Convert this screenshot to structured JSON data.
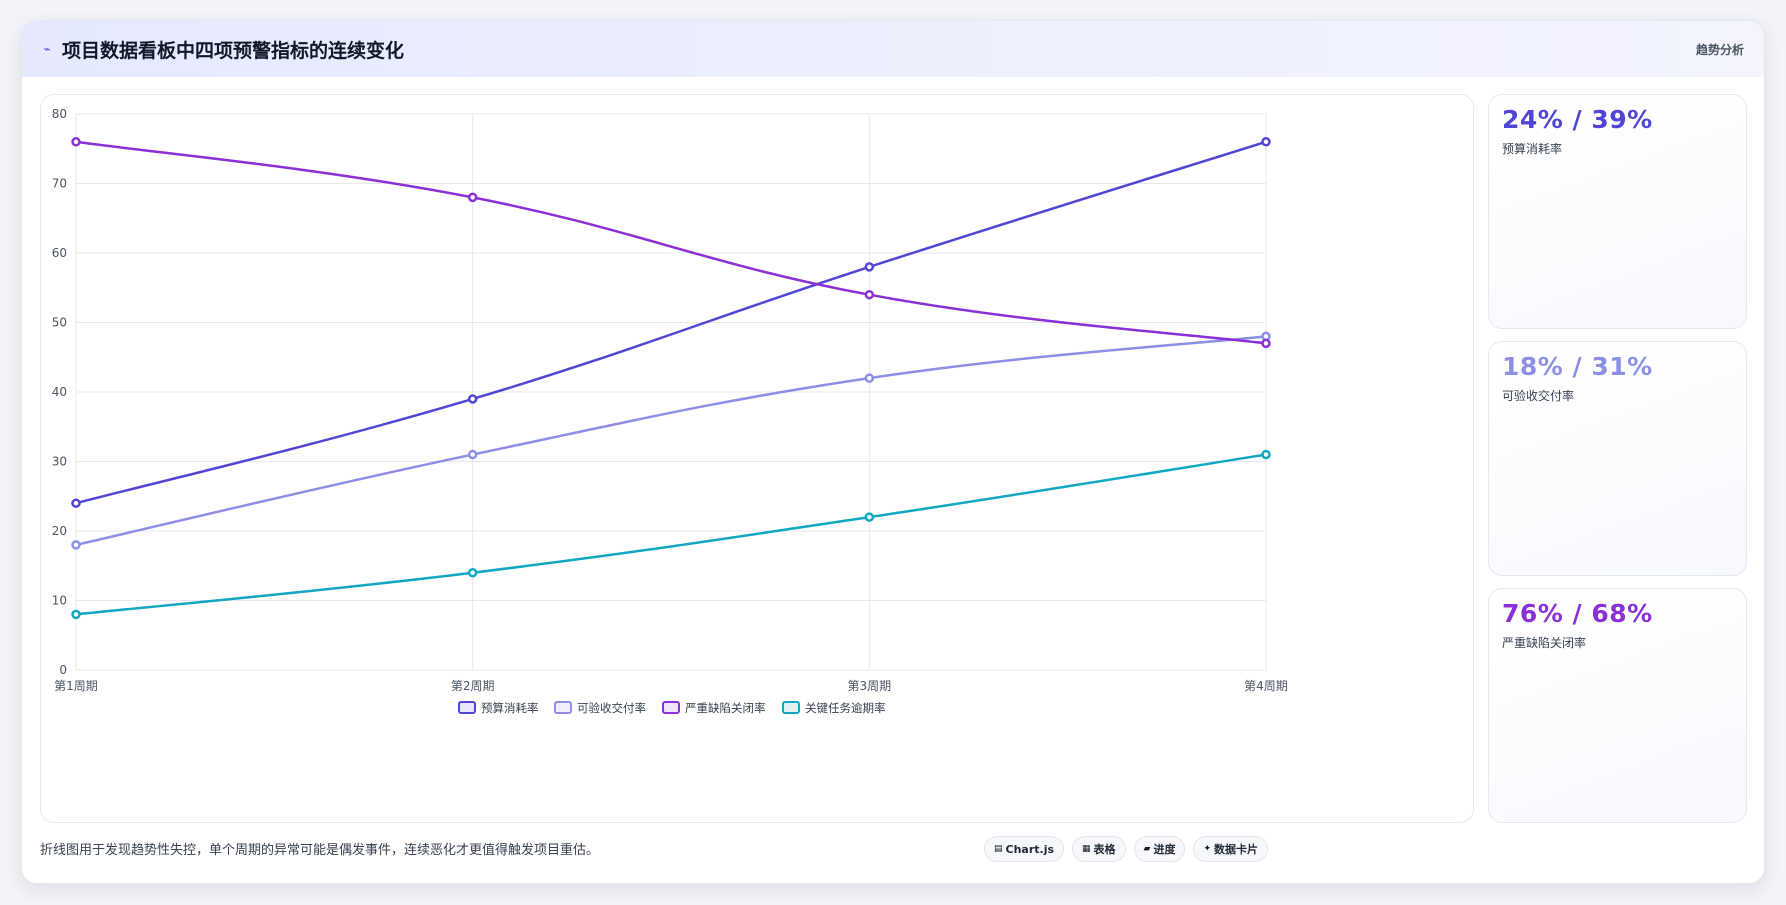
{
  "header": {
    "title_icon": "trend-icon",
    "title": "项目数据看板中四项预警指标的连续变化",
    "tag": "趋势分析"
  },
  "chart_data": {
    "type": "line",
    "x": [
      "第1周期",
      "第2周期",
      "第3周期",
      "第4周期"
    ],
    "ylim": [
      0,
      80
    ],
    "yticks": [
      0,
      10,
      20,
      30,
      40,
      50,
      60,
      70,
      80
    ],
    "grid": true,
    "legend_position": "bottom",
    "series": [
      {
        "name": "预算消耗率",
        "color": "#4f46d5",
        "values": [
          24,
          39,
          58,
          76
        ]
      },
      {
        "name": "可验收交付率",
        "color": "#8b90e6",
        "values": [
          18,
          31,
          42,
          48
        ]
      },
      {
        "name": "严重缺陷关闭率",
        "color": "#8b2fd6",
        "values": [
          76,
          68,
          54,
          47
        ]
      },
      {
        "name": "关键任务逾期率",
        "color": "#10a8c0",
        "values": [
          8,
          14,
          22,
          31
        ]
      }
    ]
  },
  "stats": [
    {
      "value": "24% / 39%",
      "label": "预算消耗率",
      "color": "#4f46d5"
    },
    {
      "value": "18% / 31%",
      "label": "可验收交付率",
      "color": "#8b90e6"
    },
    {
      "value": "76% / 68%",
      "label": "严重缺陷关闭率",
      "color": "#8b2fd6"
    }
  ],
  "footer": {
    "note": "折线图用于发现趋势性失控，单个周期的异常可能是偶发事件，连续恶化才更值得触发项目重估。",
    "chips": [
      {
        "icon": "chart-icon",
        "glyph": "▤",
        "label": "Chart.js"
      },
      {
        "icon": "table-icon",
        "glyph": "▦",
        "label": "表格"
      },
      {
        "icon": "progress-icon",
        "glyph": "▰",
        "label": "进度"
      },
      {
        "icon": "sparkle-icon",
        "glyph": "✦",
        "label": "数据卡片"
      }
    ]
  }
}
